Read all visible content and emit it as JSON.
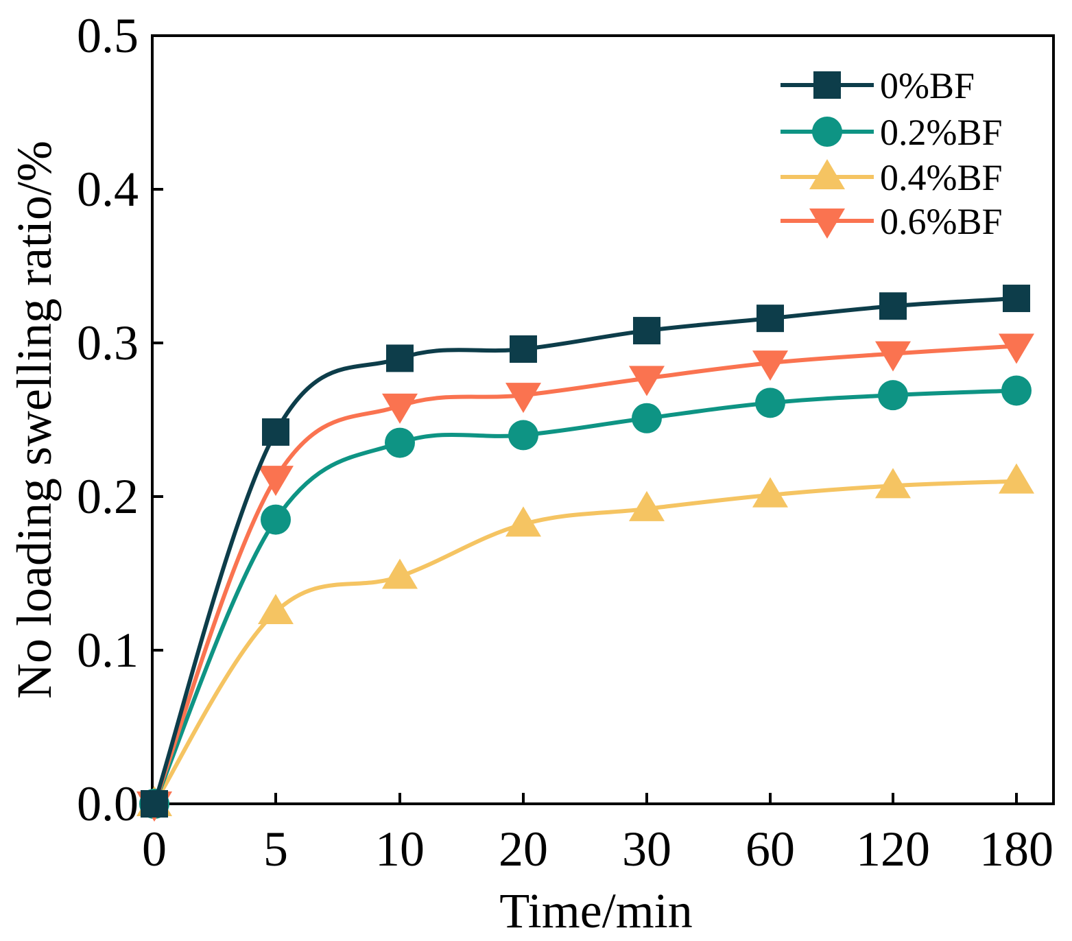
{
  "chart_data": {
    "type": "line",
    "title": "",
    "xlabel": "Time/min",
    "ylabel": "No loading swelling ratio/%",
    "categories": [
      "0",
      "5",
      "10",
      "20",
      "30",
      "60",
      "120",
      "180"
    ],
    "ylim": [
      0.0,
      0.5
    ],
    "yticks": [
      "0.0",
      "0.1",
      "0.2",
      "0.3",
      "0.4",
      "0.5"
    ],
    "grid": false,
    "legend_position": "top-right",
    "series": [
      {
        "name": "0%BF",
        "marker": "square",
        "color": "#0d3d4a",
        "values": [
          0.0,
          0.242,
          0.29,
          0.296,
          0.308,
          0.316,
          0.324,
          0.329
        ]
      },
      {
        "name": "0.2%BF",
        "marker": "circle",
        "color": "#0e9484",
        "values": [
          0.0,
          0.185,
          0.235,
          0.24,
          0.251,
          0.261,
          0.266,
          0.269
        ]
      },
      {
        "name": "0.4%BF",
        "marker": "triangle-up",
        "color": "#f5c462",
        "values": [
          0.0,
          0.125,
          0.148,
          0.182,
          0.192,
          0.201,
          0.207,
          0.21
        ]
      },
      {
        "name": "0.6%BF",
        "marker": "triangle-down",
        "color": "#fa7350",
        "values": [
          0.0,
          0.212,
          0.259,
          0.266,
          0.277,
          0.287,
          0.293,
          0.298
        ]
      }
    ]
  }
}
